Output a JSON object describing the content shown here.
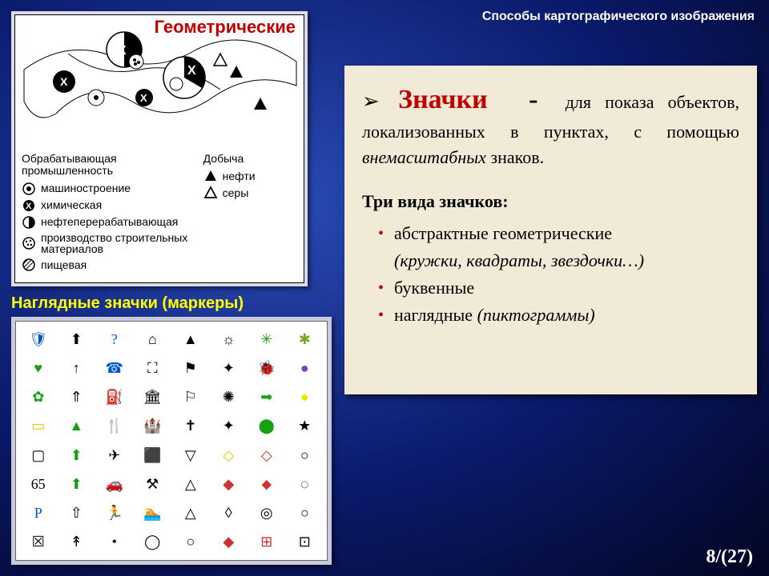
{
  "header_right": "Способы  картографического изображения",
  "geo": {
    "title": "Геометрические",
    "legend_left_header": "Обрабатывающая\nпромышленность",
    "legend_left": [
      {
        "icon": "circle-dot",
        "label": "машиностроение"
      },
      {
        "icon": "circle-x",
        "label": "химическая"
      },
      {
        "icon": "circle-half",
        "label": "нефтеперерабатывающая"
      },
      {
        "icon": "circle-dots",
        "label": "производство строительных\nматериалов"
      },
      {
        "icon": "circle-hatch",
        "label": "пищевая"
      }
    ],
    "legend_right_header": "Добыча",
    "legend_right": [
      {
        "icon": "tri-solid",
        "label": "нефти"
      },
      {
        "icon": "tri-outline",
        "label": "серы"
      }
    ]
  },
  "markers_title": "Наглядные значки (маркеры)",
  "markers_grid": {
    "rows": 8,
    "cols": 8,
    "glyphs": [
      "🛡",
      "⬆",
      "?",
      "⌂",
      "▲",
      "☼",
      "✳",
      "✱",
      "♥",
      "↑",
      "☎",
      "⛶",
      "⚑",
      "✦",
      "🐞",
      "●",
      "✿",
      "⇑",
      "⛽",
      "🏛",
      "⚐",
      "✺",
      "➡",
      "●",
      "▭",
      "▲",
      "🍴",
      "🏰",
      "✝",
      "✦",
      "⬤",
      "★",
      "▢",
      "⬆",
      "✈",
      "⬛",
      "▽",
      "◇",
      "◇",
      "○",
      "65",
      "⬆",
      "🚗",
      "⚒",
      "△",
      "◆",
      "⬥",
      "◌",
      "P",
      "⇧",
      "🏃",
      "🏊",
      "△",
      "◊",
      "◎",
      "○",
      "☒",
      "↟",
      "•",
      "◯",
      "○",
      "◆",
      "⊞",
      "⊡"
    ],
    "colors": [
      "#0055cc",
      "#000000",
      "#0055cc",
      "#000000",
      "#000000",
      "#000000",
      "#16a016",
      "#77aa22",
      "#16a016",
      "#000000",
      "#0055cc",
      "#000000",
      "#000000",
      "#000000",
      "#555555",
      "#7a3fc4",
      "#16a016",
      "#000000",
      "#0055cc",
      "#000000",
      "#000000",
      "#000000",
      "#16a016",
      "#e8e800",
      "#e8c800",
      "#16a016",
      "#0055cc",
      "#000000",
      "#000000",
      "#000000",
      "#16a016",
      "#000000",
      "#000000",
      "#16a016",
      "#000000",
      "#000000",
      "#000000",
      "#e8c800",
      "#cc3333",
      "#000000",
      "#000000",
      "#16a016",
      "#000000",
      "#000000",
      "#000000",
      "#cc3333",
      "#cc3333",
      "#000000",
      "#0055cc",
      "#000000",
      "#000000",
      "#000000",
      "#000000",
      "#000000",
      "#000000",
      "#000000",
      "#000000",
      "#000000",
      "#000000",
      "#000000",
      "#000000",
      "#cc3333",
      "#cc3333",
      "#000000"
    ]
  },
  "textbox": {
    "lead_bold": "Значки",
    "lead_dash": "-",
    "lead_rest": "для показа объектов, локализованных в пунктах, с помощью ",
    "lead_it": "внемасштабных",
    "lead_tail": " знаков.",
    "subheader": "Три вида значков:",
    "items": [
      {
        "text": "абстрактные геометрические",
        "it": "(кружки, квадраты, звездочки…)"
      },
      {
        "text": "буквенные",
        "it": ""
      },
      {
        "text": "наглядные ",
        "it": "(пиктограммы)"
      }
    ]
  },
  "pager": "8/(27)",
  "colors": {
    "accent_red": "#c00000",
    "yellow": "#ffff00",
    "box_bg": "#f0ead7"
  }
}
